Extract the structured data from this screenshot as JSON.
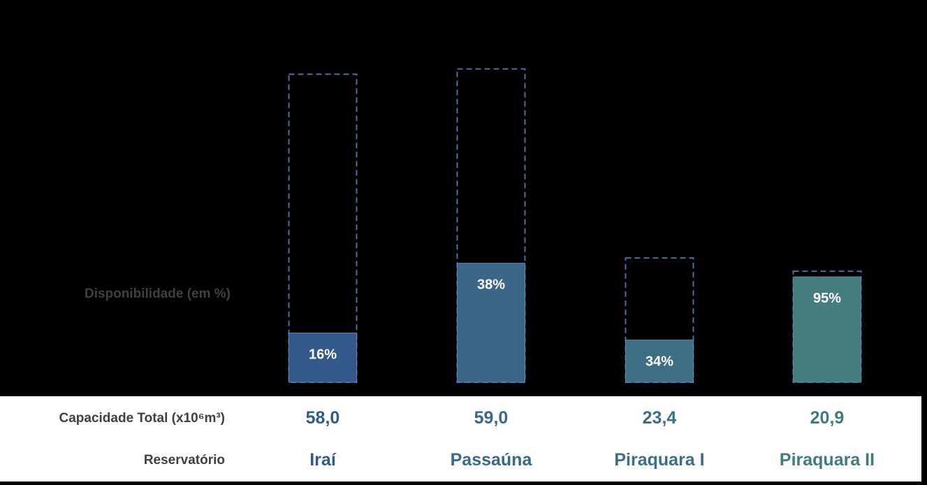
{
  "labels": {
    "disponibilidade": "Disponibilidade (em %)",
    "capacidade": "Capacidade Total (x10⁶m³)",
    "reservatorio": "Reservatório"
  },
  "chart_data": {
    "type": "bar",
    "categories": [
      "Iraí",
      "Passaúna",
      "Piraquara I",
      "Piraquara II"
    ],
    "capacity_total": [
      "58,0",
      "59,0",
      "23,4",
      "20,9"
    ],
    "capacity_values": [
      58.0,
      59.0,
      23.4,
      20.9
    ],
    "availability_percent": [
      16,
      38,
      34,
      95
    ],
    "availability_labels": [
      "16%",
      "38%",
      "34%",
      "95%"
    ],
    "colors": [
      "#33598a",
      "#3c6687",
      "#3e6e84",
      "#457d7f"
    ],
    "text_colors": [
      "#2f5b8a",
      "#36698a",
      "#3a6f88",
      "#3f7b80"
    ],
    "dashed_outline_color": "#4a6fa5"
  }
}
